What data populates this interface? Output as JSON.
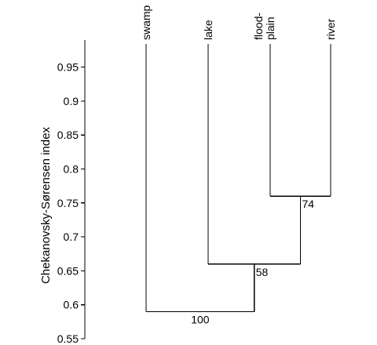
{
  "chart_data": {
    "type": "dendrogram",
    "ylabel": "Chekanovsky-Sørensen index",
    "ylim": [
      0.55,
      0.99
    ],
    "ticks": [
      0.55,
      0.6,
      0.65,
      0.7,
      0.75,
      0.8,
      0.85,
      0.9,
      0.95
    ],
    "tick_labels": [
      "0.55",
      "0.6",
      "0.65",
      "0.7",
      "0.75",
      "0.8",
      "0.85",
      "0.9",
      "0.95"
    ],
    "leaves": [
      {
        "label": "swamp",
        "lines": [
          "swamp"
        ]
      },
      {
        "label": "lake",
        "lines": [
          "lake"
        ]
      },
      {
        "label": "flood-plain",
        "lines": [
          "flood-",
          "plain"
        ]
      },
      {
        "label": "river",
        "lines": [
          "river"
        ]
      }
    ],
    "merges": [
      {
        "left": "flood-plain",
        "right": "river",
        "height": 0.76,
        "support": "74"
      },
      {
        "left": "lake",
        "right": "flood-plain+river",
        "height": 0.66,
        "support": "58"
      },
      {
        "left": "swamp",
        "right": "lake+flood-plain+river",
        "height": 0.59,
        "support": "100"
      }
    ]
  }
}
